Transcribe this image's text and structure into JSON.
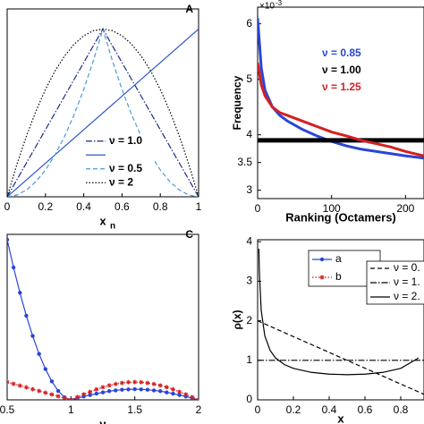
{
  "chart_data": [
    {
      "type": "line",
      "title": "A",
      "xlabel": "x",
      "xlabel_subscript": "n",
      "x": [
        0,
        0.05,
        0.1,
        0.15,
        0.2,
        0.25,
        0.3,
        0.35,
        0.4,
        0.45,
        0.5,
        0.55,
        0.6,
        0.65,
        0.7,
        0.75,
        0.8,
        0.85,
        0.9,
        0.95,
        1
      ],
      "xlim": [
        0,
        1
      ],
      "xticks": [
        0,
        0.2,
        0.4,
        0.6,
        0.8,
        1
      ],
      "ylim": [
        0,
        1.12
      ],
      "legend": "lower center",
      "series": [
        {
          "name": "ν = 1.0",
          "color": "#1a2a8a",
          "style": "dashdot",
          "values": [
            0,
            0.1,
            0.2,
            0.3,
            0.4,
            0.5,
            0.6,
            0.7,
            0.8,
            0.9,
            1,
            0.9,
            0.8,
            0.7,
            0.6,
            0.5,
            0.4,
            0.3,
            0.2,
            0.1,
            0
          ]
        },
        {
          "color": "#2b55c8",
          "style": "solid",
          "x": [
            0,
            1
          ],
          "values": [
            0,
            1
          ]
        },
        {
          "name": "ν = 0.5",
          "color": "#4a9ad8",
          "style": "dashed",
          "values": [
            0,
            0.01,
            0.04,
            0.09,
            0.16,
            0.25,
            0.36,
            0.49,
            0.64,
            0.81,
            1,
            0.81,
            0.64,
            0.49,
            0.36,
            0.25,
            0.16,
            0.09,
            0.04,
            0.01,
            0
          ]
        },
        {
          "name": "ν = 2",
          "color": "#000000",
          "style": "dotted",
          "values": [
            0,
            0.19,
            0.36,
            0.51,
            0.64,
            0.75,
            0.84,
            0.91,
            0.96,
            0.99,
            1,
            0.99,
            0.96,
            0.91,
            0.84,
            0.75,
            0.64,
            0.51,
            0.36,
            0.19,
            0
          ]
        }
      ]
    },
    {
      "type": "line",
      "xlabel": "Ranking (Octamers)",
      "ylabel": "Frequency",
      "y_multiplier": "×10",
      "y_multiplier_exponent": "-3",
      "x": [
        0,
        5,
        10,
        20,
        30,
        40,
        60,
        80,
        100,
        120,
        140,
        160,
        180,
        200,
        225
      ],
      "xlim": [
        0,
        225
      ],
      "xticks": [
        0,
        100,
        200
      ],
      "ylim": [
        2.85,
        6.3
      ],
      "yticks": [
        3,
        3.5,
        4,
        5,
        6
      ],
      "legend": "upper center",
      "series": [
        {
          "name": "ν = 0.85",
          "color": "#2a45d8",
          "style": "solid",
          "width": 3,
          "values": [
            6.1,
            5.2,
            4.8,
            4.5,
            4.35,
            4.25,
            4.1,
            3.98,
            3.88,
            3.8,
            3.74,
            3.7,
            3.66,
            3.62,
            3.58
          ]
        },
        {
          "name": "ν = 1.00",
          "color": "#000000",
          "style": "solid",
          "width": 5,
          "values": [
            3.9,
            3.9,
            3.9,
            3.9,
            3.9,
            3.9,
            3.9,
            3.9,
            3.9,
            3.9,
            3.9,
            3.9,
            3.9,
            3.9,
            3.9
          ]
        },
        {
          "name": "ν = 1.25",
          "color": "#d42020",
          "style": "solid",
          "width": 3,
          "values": [
            5.3,
            4.9,
            4.7,
            4.5,
            4.4,
            4.35,
            4.25,
            4.15,
            4.05,
            3.98,
            3.9,
            3.84,
            3.78,
            3.7,
            3.62
          ]
        }
      ]
    },
    {
      "type": "line",
      "title": "C",
      "xlabel": "ν",
      "x": [
        0.5,
        0.55,
        0.6,
        0.65,
        0.7,
        0.75,
        0.8,
        0.85,
        0.9,
        0.95,
        1,
        1.05,
        1.1,
        1.15,
        1.2,
        1.25,
        1.3,
        1.35,
        1.4,
        1.45,
        1.5,
        1.55,
        1.6,
        1.65,
        1.7,
        1.75,
        1.8,
        1.85,
        1.9,
        1.95,
        2
      ],
      "xlim": [
        0.5,
        2
      ],
      "xticks": [
        0.5,
        1,
        1.5,
        2
      ],
      "ylim": [
        0,
        0.93
      ],
      "legend": "upper right",
      "series": [
        {
          "name": "a",
          "color": "#2a45d8",
          "style": "solid",
          "marker": "circle",
          "values": [
            0.9,
            0.744,
            0.602,
            0.473,
            0.359,
            0.258,
            0.173,
            0.104,
            0.05,
            0.014,
            0,
            0.009,
            0.019,
            0.027,
            0.035,
            0.042,
            0.049,
            0.053,
            0.057,
            0.059,
            0.06,
            0.059,
            0.057,
            0.053,
            0.049,
            0.042,
            0.035,
            0.027,
            0.019,
            0.009,
            0
          ]
        },
        {
          "name": "b",
          "color": "#d42020",
          "style": "dotted",
          "marker": "star",
          "values": [
            0.1,
            0.09,
            0.08,
            0.07,
            0.06,
            0.05,
            0.04,
            0.03,
            0.02,
            0.01,
            0,
            0.016,
            0.031,
            0.045,
            0.059,
            0.071,
            0.081,
            0.089,
            0.095,
            0.099,
            0.1,
            0.099,
            0.095,
            0.089,
            0.081,
            0.071,
            0.059,
            0.045,
            0.031,
            0.016,
            0
          ]
        }
      ]
    },
    {
      "type": "line",
      "xlabel": "x",
      "ylabel": "ρ(x)",
      "xlim": [
        0,
        0.93
      ],
      "xticks": [
        0,
        0.2,
        0.4,
        0.6,
        0.8
      ],
      "ylim": [
        0,
        4.05
      ],
      "yticks": [
        0,
        1,
        2,
        3,
        4
      ],
      "legend": "upper right",
      "series": [
        {
          "name": "ν = 0.",
          "color": "#000000",
          "style": "dashed",
          "x": [
            0,
            0.93
          ],
          "values": [
            2,
            0.14
          ]
        },
        {
          "name": "ν = 1.",
          "color": "#000000",
          "style": "dashdot",
          "x": [
            0,
            0.93
          ],
          "values": [
            1,
            1
          ]
        },
        {
          "name": "ν = 2.",
          "color": "#000000",
          "style": "solid",
          "x": [
            0.007,
            0.01,
            0.02,
            0.04,
            0.07,
            0.1,
            0.15,
            0.2,
            0.3,
            0.4,
            0.5,
            0.6,
            0.7,
            0.8,
            0.9
          ],
          "values": [
            3.82,
            3.2,
            2.27,
            1.62,
            1.25,
            1.06,
            0.891,
            0.796,
            0.695,
            0.65,
            0.637,
            0.65,
            0.695,
            0.796,
            1.06
          ]
        }
      ]
    }
  ]
}
